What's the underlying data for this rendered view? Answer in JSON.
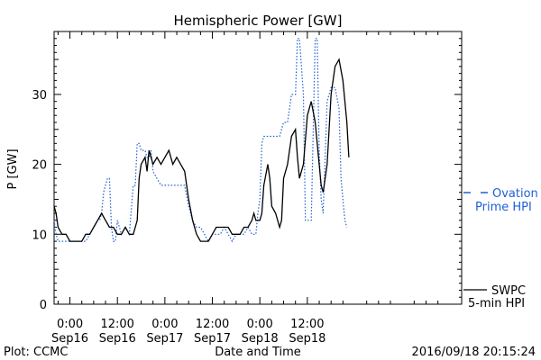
{
  "chart_data": {
    "type": "line",
    "title": "Hemispheric Power [GW]",
    "ylabel": "P [GW]",
    "xlabel": "Date and Time",
    "ylim": [
      0,
      39
    ],
    "yticks": [
      0,
      10,
      20,
      30
    ],
    "xlim_hours": [
      -4,
      99
    ],
    "xticks": [
      {
        "time": "0:00",
        "date": "Sep16",
        "h": 0
      },
      {
        "time": "12:00",
        "date": "Sep16",
        "h": 12
      },
      {
        "time": "0:00",
        "date": "Sep17",
        "h": 24
      },
      {
        "time": "12:00",
        "date": "Sep17",
        "h": 36
      },
      {
        "time": "0:00",
        "date": "Sep18",
        "h": 48
      },
      {
        "time": "12:00",
        "date": "Sep18",
        "h": 60
      }
    ],
    "series": [
      {
        "name": "Ovation Prime HPI",
        "color": "#1f5fd6",
        "style": "dotted",
        "points": [
          [
            -4,
            12
          ],
          [
            -3.5,
            10
          ],
          [
            -3,
            9
          ],
          [
            -1,
            9
          ],
          [
            0,
            9
          ],
          [
            2,
            9
          ],
          [
            3.5,
            9
          ],
          [
            4,
            9
          ],
          [
            5,
            10
          ],
          [
            6,
            11
          ],
          [
            7,
            12
          ],
          [
            7.5,
            12
          ],
          [
            8,
            13
          ],
          [
            8.5,
            16
          ],
          [
            9,
            17
          ],
          [
            9.5,
            18
          ],
          [
            10,
            18
          ],
          [
            10.5,
            11
          ],
          [
            11,
            9
          ],
          [
            11.5,
            9
          ],
          [
            12,
            12
          ],
          [
            12.5,
            11
          ],
          [
            13,
            10
          ],
          [
            14,
            11
          ],
          [
            15,
            10
          ],
          [
            16,
            17
          ],
          [
            16.5,
            17
          ],
          [
            17,
            23
          ],
          [
            17.5,
            23
          ],
          [
            18,
            22
          ],
          [
            19,
            22
          ],
          [
            19.5,
            21
          ],
          [
            20,
            21
          ],
          [
            20.5,
            22
          ],
          [
            21,
            19
          ],
          [
            22,
            18
          ],
          [
            23,
            17
          ],
          [
            24,
            17
          ],
          [
            26,
            17
          ],
          [
            28,
            17
          ],
          [
            29,
            17
          ],
          [
            30,
            14
          ],
          [
            31,
            12
          ],
          [
            32,
            11
          ],
          [
            33,
            11
          ],
          [
            34,
            10
          ],
          [
            35,
            9
          ],
          [
            36,
            10
          ],
          [
            37,
            10
          ],
          [
            38,
            10
          ],
          [
            39,
            11
          ],
          [
            40,
            10
          ],
          [
            41,
            9
          ],
          [
            42,
            10
          ],
          [
            43,
            10
          ],
          [
            44,
            10
          ],
          [
            45,
            11
          ],
          [
            46,
            10
          ],
          [
            47,
            10
          ],
          [
            47.5,
            13
          ],
          [
            48,
            15
          ],
          [
            48.5,
            23
          ],
          [
            49,
            24
          ],
          [
            50,
            24
          ],
          [
            52,
            24
          ],
          [
            53,
            24
          ],
          [
            54,
            26
          ],
          [
            55,
            26
          ],
          [
            56,
            30
          ],
          [
            57,
            30
          ],
          [
            57.5,
            38
          ],
          [
            58,
            38
          ],
          [
            58.5,
            34
          ],
          [
            59,
            30
          ],
          [
            59.5,
            12
          ],
          [
            60,
            12
          ],
          [
            61,
            12
          ],
          [
            62,
            38
          ],
          [
            62.5,
            38
          ],
          [
            63,
            22
          ],
          [
            63.5,
            15
          ],
          [
            64,
            13
          ],
          [
            65,
            29
          ],
          [
            66,
            31
          ],
          [
            67,
            31
          ],
          [
            68,
            28
          ],
          [
            68.5,
            18
          ],
          [
            69,
            15
          ],
          [
            69.5,
            12
          ],
          [
            70,
            11
          ]
        ]
      },
      {
        "name": "SWPC 5-min HPI",
        "color": "#000000",
        "style": "solid",
        "points": [
          [
            -4,
            14
          ],
          [
            -3.5,
            13
          ],
          [
            -3,
            11
          ],
          [
            -2,
            10
          ],
          [
            -1,
            10
          ],
          [
            0,
            9
          ],
          [
            1,
            9
          ],
          [
            2,
            9
          ],
          [
            3,
            9
          ],
          [
            4,
            10
          ],
          [
            5,
            10
          ],
          [
            6,
            11
          ],
          [
            7,
            12
          ],
          [
            8,
            13
          ],
          [
            9,
            12
          ],
          [
            10,
            11
          ],
          [
            11,
            11
          ],
          [
            12,
            10
          ],
          [
            13,
            10
          ],
          [
            14,
            11
          ],
          [
            15,
            10
          ],
          [
            16,
            10
          ],
          [
            17,
            12
          ],
          [
            17.5,
            18
          ],
          [
            18,
            20
          ],
          [
            19,
            21
          ],
          [
            19.5,
            19
          ],
          [
            20,
            22
          ],
          [
            21,
            20
          ],
          [
            22,
            21
          ],
          [
            23,
            20
          ],
          [
            24,
            21
          ],
          [
            25,
            22
          ],
          [
            26,
            20
          ],
          [
            27,
            21
          ],
          [
            28,
            20
          ],
          [
            29,
            19
          ],
          [
            30,
            15
          ],
          [
            31,
            12
          ],
          [
            32,
            10
          ],
          [
            33,
            9
          ],
          [
            34,
            9
          ],
          [
            35,
            9
          ],
          [
            36,
            10
          ],
          [
            37,
            11
          ],
          [
            38,
            11
          ],
          [
            39,
            11
          ],
          [
            40,
            11
          ],
          [
            41,
            10
          ],
          [
            42,
            10
          ],
          [
            43,
            10
          ],
          [
            44,
            11
          ],
          [
            45,
            11
          ],
          [
            46,
            12
          ],
          [
            46.5,
            13
          ],
          [
            47,
            12
          ],
          [
            48,
            12
          ],
          [
            48.5,
            13
          ],
          [
            49,
            17
          ],
          [
            50,
            20
          ],
          [
            50.5,
            18
          ],
          [
            51,
            14
          ],
          [
            52,
            13
          ],
          [
            53,
            11
          ],
          [
            53.5,
            12
          ],
          [
            54,
            18
          ],
          [
            55,
            20
          ],
          [
            56,
            24
          ],
          [
            57,
            25
          ],
          [
            57.5,
            21
          ],
          [
            58,
            18
          ],
          [
            59,
            20
          ],
          [
            60,
            27
          ],
          [
            61,
            29
          ],
          [
            62,
            26
          ],
          [
            63,
            20
          ],
          [
            63.5,
            17
          ],
          [
            64,
            16
          ],
          [
            65,
            20
          ],
          [
            66,
            30
          ],
          [
            67,
            34
          ],
          [
            68,
            35
          ],
          [
            69,
            32
          ],
          [
            70,
            26
          ],
          [
            70.5,
            21
          ]
        ]
      }
    ],
    "legend": {
      "placement": "right",
      "entries": [
        {
          "line1": "Ovation",
          "line2": "Prime HPI",
          "color": "#1f5fd6",
          "style": "dotted"
        },
        {
          "line1": "SWPC",
          "line2": "5-min HPI",
          "color": "#000000",
          "style": "solid"
        }
      ]
    },
    "grid": false
  },
  "footer": {
    "plot_credit": "Plot: CCMC",
    "timestamp": "2016/09/18 20:15:24"
  }
}
